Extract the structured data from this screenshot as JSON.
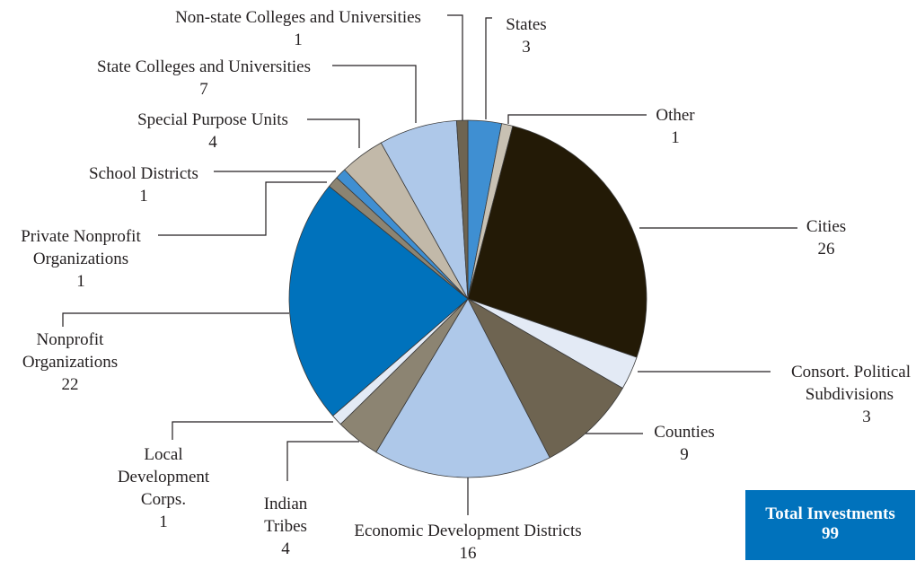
{
  "chart_data": {
    "type": "pie",
    "start_angle_deg": 0,
    "direction": "clockwise",
    "slices": [
      {
        "label": "States",
        "value": 3,
        "color": "#3f8fd2"
      },
      {
        "label": "Other",
        "value": 1,
        "color": "#c8c1b3"
      },
      {
        "label": "Cities",
        "value": 26,
        "color": "#231a06"
      },
      {
        "label": "Consort. Political Subdivisions",
        "value": 3,
        "color": "#e3eaf5"
      },
      {
        "label": "Counties",
        "value": 9,
        "color": "#6e6451"
      },
      {
        "label": "Economic Development Districts",
        "value": 16,
        "color": "#aec8e9"
      },
      {
        "label": "Indian Tribes",
        "value": 4,
        "color": "#8c8472"
      },
      {
        "label": "Local Development Corps.",
        "value": 1,
        "color": "#e3eaf5"
      },
      {
        "label": "Nonprofit Organizations",
        "value": 22,
        "color": "#0072bc"
      },
      {
        "label": "Private Nonprofit Organizations",
        "value": 1,
        "color": "#8c8472"
      },
      {
        "label": "School Districts",
        "value": 1,
        "color": "#3f8fd2"
      },
      {
        "label": "Special Purpose Units",
        "value": 4,
        "color": "#c2b9a9"
      },
      {
        "label": "State Colleges and Universities",
        "value": 7,
        "color": "#aec8e9"
      },
      {
        "label": "Non-state Colleges and Universities",
        "value": 1,
        "color": "#6e6451"
      }
    ],
    "label_lines": {
      "States": [
        "States",
        "3"
      ],
      "Other": [
        "Other",
        "1"
      ],
      "Cities": [
        "Cities",
        "26"
      ],
      "Consort. Political Subdivisions": [
        "Consort. Political",
        "Subdivisions",
        "3"
      ],
      "Counties": [
        "Counties",
        "9"
      ],
      "Economic Development Districts": [
        "Economic Development Districts",
        "16"
      ],
      "Indian Tribes": [
        "Indian",
        "Tribes",
        "4"
      ],
      "Local Development Corps.": [
        "Local",
        "Development",
        "Corps.",
        "1"
      ],
      "Nonprofit Organizations": [
        "Nonprofit",
        "Organizations",
        "22"
      ],
      "Private Nonprofit Organizations": [
        "Private Nonprofit",
        "Organizations",
        "1"
      ],
      "School Districts": [
        "School Districts",
        "1"
      ],
      "Special Purpose Units": [
        "Special Purpose Units",
        "4"
      ],
      "State Colleges and Universities": [
        "State Colleges and Universities",
        "7"
      ],
      "Non-state Colleges and Universities": [
        "Non-state Colleges and Universities",
        "1"
      ]
    },
    "total": {
      "label": "Total Investments",
      "value": "99"
    }
  }
}
